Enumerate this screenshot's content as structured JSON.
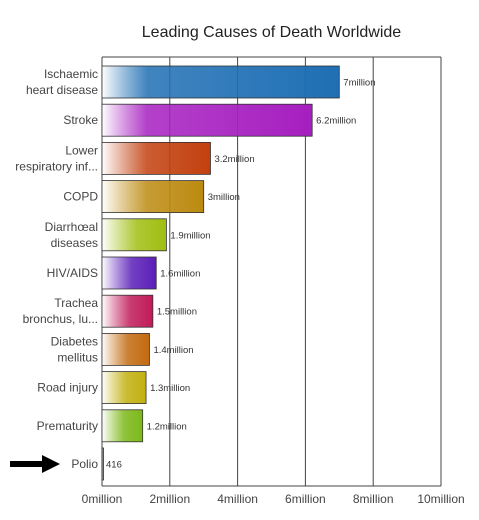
{
  "chart_data": {
    "type": "bar",
    "orientation": "horizontal",
    "title": "Leading Causes of Death Worldwide",
    "categories": [
      [
        "Ischaemic",
        "heart disease"
      ],
      [
        "Stroke"
      ],
      [
        "Lower",
        "respiratory inf..."
      ],
      [
        "COPD"
      ],
      [
        "Diarrhœal",
        "diseases"
      ],
      [
        "HIV/AIDS"
      ],
      [
        "Trachea",
        "bronchus, lu..."
      ],
      [
        "Diabetes",
        "mellitus"
      ],
      [
        "Road injury"
      ],
      [
        "Prematurity"
      ],
      [
        "Polio"
      ]
    ],
    "values": [
      7000000,
      6200000,
      3200000,
      3000000,
      1900000,
      1600000,
      1500000,
      1400000,
      1300000,
      1200000,
      416
    ],
    "data_labels": [
      "7million",
      "6.2million",
      "3.2million",
      "3million",
      "1.9million",
      "1.6million",
      "1.5million",
      "1.4million",
      "1.3million",
      "1.2million",
      "416"
    ],
    "colors": [
      "#1f6fb4",
      "#a61fc0",
      "#c2400e",
      "#bc8a10",
      "#9fbe10",
      "#5a1eb8",
      "#c01a58",
      "#c26a10",
      "#c2b010",
      "#7cb818",
      "#888888"
    ],
    "x_ticks": [
      0,
      2000000,
      4000000,
      6000000,
      8000000,
      10000000
    ],
    "x_tick_labels": [
      "0million",
      "2million",
      "4million",
      "6million",
      "8million",
      "10million"
    ],
    "xlim": [
      0,
      10000000
    ],
    "grid": true,
    "highlight": {
      "category_index": 10,
      "marker": "arrow",
      "color": "#000000"
    }
  }
}
